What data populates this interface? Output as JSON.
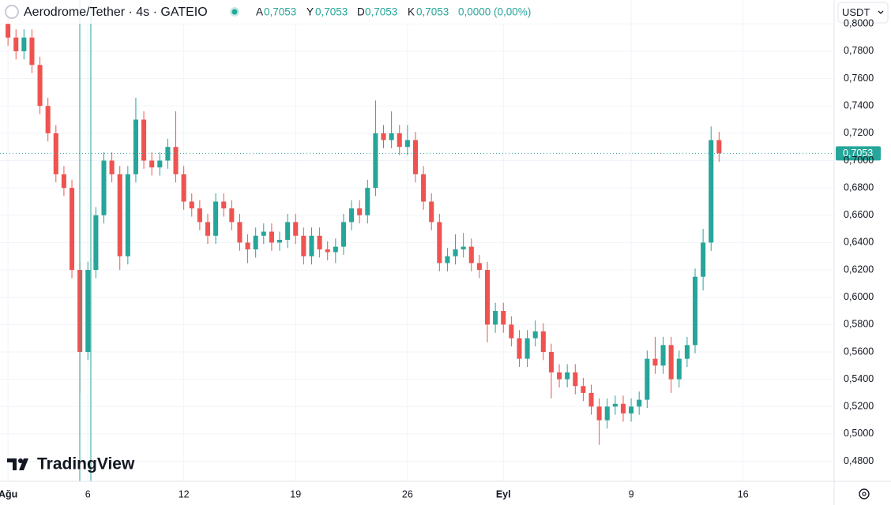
{
  "header": {
    "title": "Aerodrome/Tether · 4s · GATEIO",
    "ohlc": [
      {
        "key": "A",
        "value": "0,7053"
      },
      {
        "key": "Y",
        "value": "0,7053"
      },
      {
        "key": "D",
        "value": "0,7053"
      },
      {
        "key": "K",
        "value": "0,7053"
      }
    ],
    "change": "0,0000 (0,00%)",
    "currency": "USDT",
    "logo": "TradingView"
  },
  "chart_data": {
    "type": "candlestick",
    "up_color": "#26a69a",
    "down_color": "#ef5350",
    "grid": true,
    "xlim": [
      -0.5,
      51.7
    ],
    "ylim": [
      0.4653,
      0.8175
    ],
    "xticks": [
      {
        "value": 0,
        "label": "Ağu"
      },
      {
        "value": 5,
        "label": "6"
      },
      {
        "value": 11,
        "label": "12"
      },
      {
        "value": 18,
        "label": "19"
      },
      {
        "value": 25,
        "label": "26"
      },
      {
        "value": 31,
        "label": "Eyl"
      },
      {
        "value": 39,
        "label": "9"
      },
      {
        "value": 46,
        "label": "16"
      }
    ],
    "yticks": [
      {
        "value": 0.48,
        "label": "0,4800"
      },
      {
        "value": 0.5,
        "label": "0,5000"
      },
      {
        "value": 0.52,
        "label": "0,5200"
      },
      {
        "value": 0.54,
        "label": "0,5400"
      },
      {
        "value": 0.56,
        "label": "0,5600"
      },
      {
        "value": 0.58,
        "label": "0,5800"
      },
      {
        "value": 0.6,
        "label": "0,6000"
      },
      {
        "value": 0.62,
        "label": "0,6200"
      },
      {
        "value": 0.64,
        "label": "0,6400"
      },
      {
        "value": 0.66,
        "label": "0,6600"
      },
      {
        "value": 0.68,
        "label": "0,6800"
      },
      {
        "value": 0.7,
        "label": "0,7000"
      },
      {
        "value": 0.72,
        "label": "0,7200"
      },
      {
        "value": 0.74,
        "label": "0,7400"
      },
      {
        "value": 0.76,
        "label": "0,7600"
      },
      {
        "value": 0.78,
        "label": "0,7800"
      },
      {
        "value": 0.8,
        "label": "0,8000"
      }
    ],
    "last_price": {
      "value": 0.7053,
      "label": "0,7053"
    },
    "x": [
      0,
      0.5,
      1,
      1.5,
      2,
      2.5,
      3,
      3.5,
      4,
      4.5,
      5,
      5.5,
      6,
      6.5,
      7,
      7.5,
      8,
      8.5,
      9,
      9.5,
      10,
      10.5,
      11,
      11.5,
      12,
      12.5,
      13,
      13.5,
      14,
      14.5,
      15,
      15.5,
      16,
      16.5,
      17,
      17.5,
      18,
      18.5,
      19,
      19.5,
      20,
      20.5,
      21,
      21.5,
      22,
      22.5,
      23,
      23.5,
      24,
      24.5,
      25,
      25.5,
      26,
      26.5,
      27,
      27.5,
      28,
      28.5,
      29,
      29.5,
      30,
      30.5,
      31,
      31.5,
      32,
      32.5,
      33,
      33.5,
      34,
      34.5,
      35,
      35.5,
      36,
      36.5,
      37,
      37.5,
      38,
      38.5,
      39,
      39.5,
      40,
      40.5,
      41,
      41.5,
      42,
      42.5,
      43,
      43.5,
      44,
      44.5
    ],
    "open": [
      0.8,
      0.79,
      0.78,
      0.79,
      0.77,
      0.74,
      0.72,
      0.69,
      0.68,
      0.62,
      0.56,
      0.62,
      0.66,
      0.7,
      0.69,
      0.63,
      0.69,
      0.73,
      0.7,
      0.695,
      0.7,
      0.71,
      0.69,
      0.67,
      0.665,
      0.655,
      0.645,
      0.67,
      0.665,
      0.655,
      0.64,
      0.635,
      0.645,
      0.648,
      0.64,
      0.642,
      0.655,
      0.645,
      0.63,
      0.645,
      0.635,
      0.633,
      0.637,
      0.655,
      0.665,
      0.66,
      0.68,
      0.72,
      0.715,
      0.72,
      0.71,
      0.715,
      0.69,
      0.67,
      0.655,
      0.625,
      0.63,
      0.635,
      0.637,
      0.625,
      0.62,
      0.58,
      0.59,
      0.58,
      0.57,
      0.555,
      0.57,
      0.575,
      0.56,
      0.545,
      0.54,
      0.545,
      0.535,
      0.53,
      0.52,
      0.51,
      0.52,
      0.522,
      0.515,
      0.52,
      0.525,
      0.555,
      0.55,
      0.565,
      0.54,
      0.555,
      0.565,
      0.615,
      0.64,
      0.715
    ],
    "high": [
      0.806,
      0.796,
      0.796,
      0.796,
      0.776,
      0.746,
      0.726,
      0.696,
      0.686,
      0.626,
      0.626,
      0.666,
      0.706,
      0.706,
      0.696,
      0.696,
      0.746,
      0.736,
      0.706,
      0.706,
      0.716,
      0.736,
      0.696,
      0.676,
      0.671,
      0.661,
      0.676,
      0.676,
      0.671,
      0.661,
      0.646,
      0.651,
      0.654,
      0.654,
      0.648,
      0.661,
      0.661,
      0.651,
      0.651,
      0.651,
      0.641,
      0.643,
      0.661,
      0.671,
      0.671,
      0.686,
      0.744,
      0.726,
      0.736,
      0.726,
      0.726,
      0.721,
      0.696,
      0.676,
      0.661,
      0.636,
      0.646,
      0.647,
      0.643,
      0.631,
      0.626,
      0.596,
      0.596,
      0.586,
      0.576,
      0.576,
      0.583,
      0.581,
      0.566,
      0.551,
      0.551,
      0.551,
      0.541,
      0.536,
      0.526,
      0.526,
      0.528,
      0.528,
      0.526,
      0.531,
      0.561,
      0.571,
      0.571,
      0.571,
      0.561,
      0.571,
      0.621,
      0.65,
      0.725,
      0.721
    ],
    "low": [
      0.784,
      0.774,
      0.774,
      0.764,
      0.734,
      0.714,
      0.684,
      0.674,
      0.614,
      0.53,
      0.554,
      0.614,
      0.654,
      0.684,
      0.62,
      0.624,
      0.684,
      0.694,
      0.689,
      0.689,
      0.694,
      0.684,
      0.664,
      0.659,
      0.649,
      0.639,
      0.639,
      0.659,
      0.649,
      0.634,
      0.625,
      0.629,
      0.639,
      0.634,
      0.634,
      0.636,
      0.639,
      0.624,
      0.624,
      0.629,
      0.627,
      0.625,
      0.631,
      0.649,
      0.654,
      0.654,
      0.674,
      0.709,
      0.709,
      0.704,
      0.704,
      0.684,
      0.664,
      0.649,
      0.619,
      0.619,
      0.624,
      0.629,
      0.619,
      0.614,
      0.567,
      0.574,
      0.574,
      0.564,
      0.549,
      0.549,
      0.564,
      0.554,
      0.526,
      0.534,
      0.534,
      0.529,
      0.524,
      0.514,
      0.492,
      0.504,
      0.514,
      0.509,
      0.509,
      0.514,
      0.519,
      0.544,
      0.544,
      0.53,
      0.534,
      0.549,
      0.559,
      0.605,
      0.634,
      0.699
    ],
    "close": [
      0.79,
      0.78,
      0.79,
      0.77,
      0.74,
      0.72,
      0.69,
      0.68,
      0.62,
      0.56,
      0.62,
      0.66,
      0.7,
      0.69,
      0.63,
      0.69,
      0.73,
      0.7,
      0.695,
      0.7,
      0.71,
      0.69,
      0.67,
      0.665,
      0.655,
      0.645,
      0.67,
      0.665,
      0.655,
      0.64,
      0.635,
      0.645,
      0.648,
      0.64,
      0.642,
      0.655,
      0.645,
      0.63,
      0.645,
      0.635,
      0.633,
      0.637,
      0.655,
      0.665,
      0.66,
      0.68,
      0.72,
      0.715,
      0.72,
      0.71,
      0.715,
      0.69,
      0.67,
      0.655,
      0.625,
      0.63,
      0.635,
      0.637,
      0.625,
      0.62,
      0.58,
      0.59,
      0.58,
      0.57,
      0.555,
      0.57,
      0.575,
      0.56,
      0.545,
      0.54,
      0.545,
      0.535,
      0.53,
      0.52,
      0.51,
      0.52,
      0.522,
      0.515,
      0.52,
      0.525,
      0.555,
      0.55,
      0.565,
      0.54,
      0.555,
      0.565,
      0.615,
      0.64,
      0.715,
      0.7053
    ]
  }
}
